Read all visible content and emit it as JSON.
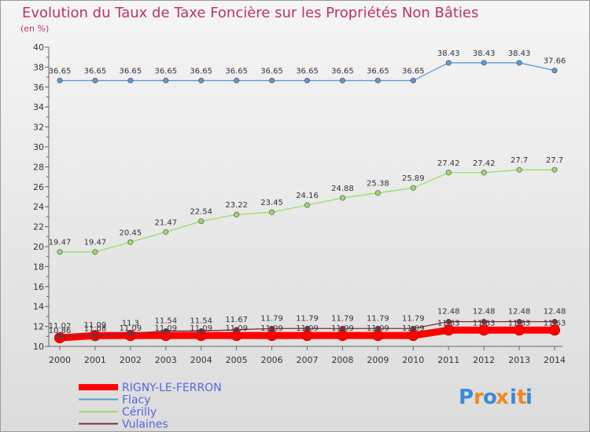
{
  "chart_data": {
    "type": "line",
    "title": "Evolution du Taux de Taxe Foncière sur les Propriétés Non Bâties",
    "ylabel": "(en %)",
    "xlabel": "",
    "ylim": [
      10,
      40
    ],
    "yticks": [
      10,
      12,
      14,
      16,
      18,
      20,
      22,
      24,
      26,
      28,
      30,
      32,
      34,
      36,
      38,
      40
    ],
    "categories": [
      "2000",
      "2001",
      "2002",
      "2003",
      "2004",
      "2005",
      "2006",
      "2007",
      "2008",
      "2009",
      "2010",
      "2011",
      "2012",
      "2013",
      "2014"
    ],
    "grid": false,
    "legend_position": "bottom-left",
    "series": [
      {
        "name": "RIGNY-LE-FERRON",
        "color": "#ff0000",
        "values": [
          10.86,
          11.08,
          11.09,
          11.09,
          11.09,
          11.09,
          11.09,
          11.09,
          11.09,
          11.09,
          11.09,
          11.63,
          11.63,
          11.63,
          11.63
        ],
        "labels": [
          "10.86",
          "11.08",
          "11.09",
          "11.09",
          "11.09",
          "11.09",
          "11.09",
          "11.09",
          "11.09",
          "11.09",
          "11.09",
          "11.63",
          "11.63",
          "11.63",
          "11.63"
        ]
      },
      {
        "name": "Flacy",
        "color": "#5d9ad1",
        "values": [
          36.65,
          36.65,
          36.65,
          36.65,
          36.65,
          36.65,
          36.65,
          36.65,
          36.65,
          36.65,
          36.65,
          38.43,
          38.43,
          38.43,
          37.66
        ],
        "labels": [
          "36.65",
          "36.65",
          "36.65",
          "36.65",
          "36.65",
          "36.65",
          "36.65",
          "36.65",
          "36.65",
          "36.65",
          "36.65",
          "38.43",
          "38.43",
          "38.43",
          "37.66"
        ]
      },
      {
        "name": "Cérilly",
        "color": "#99dd66",
        "values": [
          19.47,
          19.47,
          20.45,
          21.47,
          22.54,
          23.22,
          23.45,
          24.16,
          24.88,
          25.38,
          25.89,
          27.42,
          27.42,
          27.7,
          27.7
        ],
        "labels": [
          "19.47",
          "19.47",
          "20.45",
          "21.47",
          "22.54",
          "23.22",
          "23.45",
          "24.16",
          "24.88",
          "25.38",
          "25.89",
          "27.42",
          "27.42",
          "27.7",
          "27.7"
        ]
      },
      {
        "name": "Vulaines",
        "color": "#7a2e3a",
        "values": [
          11.02,
          11.09,
          11.3,
          11.54,
          11.54,
          11.67,
          11.79,
          11.79,
          11.79,
          11.79,
          11.79,
          12.48,
          12.48,
          12.48,
          12.48
        ],
        "labels": [
          "11.02",
          "11.09",
          "11.3",
          "11.54",
          "11.54",
          "11.67",
          "11.79",
          "11.79",
          "11.79",
          "11.79",
          "11.79",
          "12.48",
          "12.48",
          "12.48",
          "12.48"
        ]
      }
    ]
  },
  "logo": {
    "text": "Proxiti",
    "letters": [
      "P",
      "r",
      "o",
      "x",
      "i",
      "t",
      "i"
    ],
    "colors": [
      "#3a8ad8",
      "#f08a1c",
      "#3a8ad8",
      "#f08a1c",
      "#3a8ad8",
      "#f08a1c",
      "#3a8ad8"
    ]
  }
}
